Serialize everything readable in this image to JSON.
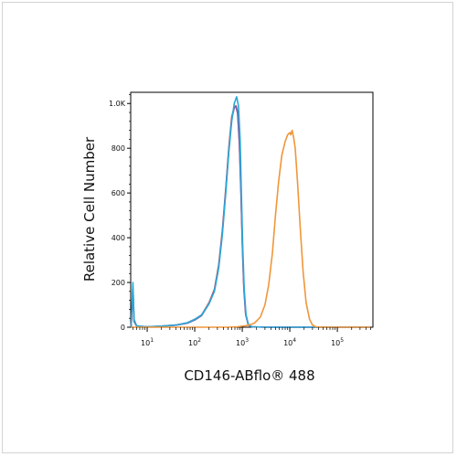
{
  "chart_data": {
    "type": "line",
    "xlabel": "CD146-ABflo® 488",
    "ylabel": "Relative Cell Number",
    "x_scale": "log",
    "xlim": [
      4.5,
      560000
    ],
    "ylim": [
      0,
      1050
    ],
    "y_ticks": [
      {
        "value": 0,
        "label": "0"
      },
      {
        "value": 200,
        "label": "200"
      },
      {
        "value": 400,
        "label": "400"
      },
      {
        "value": 600,
        "label": "600"
      },
      {
        "value": 800,
        "label": "800"
      },
      {
        "value": 1000,
        "label": "1.0K"
      }
    ],
    "x_ticks": [
      {
        "value": 10,
        "base": "10",
        "exp": "1"
      },
      {
        "value": 100,
        "base": "10",
        "exp": "2"
      },
      {
        "value": 1000,
        "base": "10",
        "exp": "3"
      },
      {
        "value": 10000,
        "base": "10",
        "exp": "4"
      },
      {
        "value": 100000,
        "base": "10",
        "exp": "5"
      }
    ],
    "series": [
      {
        "color": "#d9534f",
        "points": [
          [
            4.6,
            0
          ],
          [
            5,
            180
          ],
          [
            5.3,
            30
          ],
          [
            6,
            5
          ],
          [
            10,
            2
          ],
          [
            20,
            5
          ],
          [
            40,
            10
          ],
          [
            70,
            20
          ],
          [
            100,
            35
          ],
          [
            140,
            55
          ],
          [
            200,
            110
          ],
          [
            260,
            170
          ],
          [
            320,
            280
          ],
          [
            380,
            430
          ],
          [
            450,
            620
          ],
          [
            520,
            800
          ],
          [
            600,
            940
          ],
          [
            680,
            985
          ],
          [
            740,
            990
          ],
          [
            800,
            960
          ],
          [
            870,
            830
          ],
          [
            940,
            600
          ],
          [
            1000,
            380
          ],
          [
            1080,
            180
          ],
          [
            1180,
            60
          ],
          [
            1350,
            10
          ],
          [
            1600,
            2
          ],
          [
            3000,
            0
          ],
          [
            500000,
            0
          ]
        ]
      },
      {
        "color": "#7b5ea7",
        "points": [
          [
            4.6,
            0
          ],
          [
            5,
            160
          ],
          [
            5.3,
            25
          ],
          [
            6,
            5
          ],
          [
            10,
            2
          ],
          [
            20,
            4
          ],
          [
            40,
            9
          ],
          [
            70,
            18
          ],
          [
            100,
            32
          ],
          [
            140,
            52
          ],
          [
            200,
            105
          ],
          [
            260,
            165
          ],
          [
            320,
            270
          ],
          [
            380,
            420
          ],
          [
            450,
            610
          ],
          [
            520,
            790
          ],
          [
            600,
            930
          ],
          [
            680,
            980
          ],
          [
            740,
            985
          ],
          [
            800,
            955
          ],
          [
            870,
            820
          ],
          [
            940,
            590
          ],
          [
            1000,
            370
          ],
          [
            1080,
            170
          ],
          [
            1180,
            55
          ],
          [
            1350,
            8
          ],
          [
            1600,
            2
          ],
          [
            3000,
            0
          ],
          [
            500000,
            0
          ]
        ]
      },
      {
        "color": "#29a8d8",
        "points": [
          [
            4.6,
            0
          ],
          [
            5,
            200
          ],
          [
            5.3,
            35
          ],
          [
            6,
            6
          ],
          [
            10,
            2
          ],
          [
            20,
            5
          ],
          [
            40,
            10
          ],
          [
            70,
            20
          ],
          [
            100,
            35
          ],
          [
            140,
            55
          ],
          [
            200,
            105
          ],
          [
            260,
            160
          ],
          [
            320,
            265
          ],
          [
            380,
            410
          ],
          [
            450,
            600
          ],
          [
            520,
            780
          ],
          [
            600,
            920
          ],
          [
            680,
            1000
          ],
          [
            760,
            1030
          ],
          [
            830,
            990
          ],
          [
            900,
            840
          ],
          [
            960,
            600
          ],
          [
            1020,
            370
          ],
          [
            1100,
            170
          ],
          [
            1200,
            55
          ],
          [
            1350,
            10
          ],
          [
            1600,
            2
          ],
          [
            3000,
            0
          ],
          [
            500000,
            0
          ]
        ]
      },
      {
        "color": "#f0963a",
        "points": [
          [
            4.6,
            0
          ],
          [
            500,
            0
          ],
          [
            800,
            2
          ],
          [
            1300,
            8
          ],
          [
            1800,
            18
          ],
          [
            2400,
            45
          ],
          [
            3000,
            100
          ],
          [
            3600,
            190
          ],
          [
            4300,
            330
          ],
          [
            5000,
            500
          ],
          [
            5800,
            650
          ],
          [
            6800,
            770
          ],
          [
            8000,
            830
          ],
          [
            9000,
            860
          ],
          [
            10000,
            870
          ],
          [
            10500,
            860
          ],
          [
            11200,
            880
          ],
          [
            12000,
            850
          ],
          [
            13000,
            800
          ],
          [
            14500,
            650
          ],
          [
            16500,
            450
          ],
          [
            19000,
            250
          ],
          [
            22000,
            110
          ],
          [
            26000,
            35
          ],
          [
            30000,
            10
          ],
          [
            35000,
            2
          ],
          [
            45000,
            0
          ],
          [
            500000,
            0
          ]
        ]
      }
    ]
  }
}
